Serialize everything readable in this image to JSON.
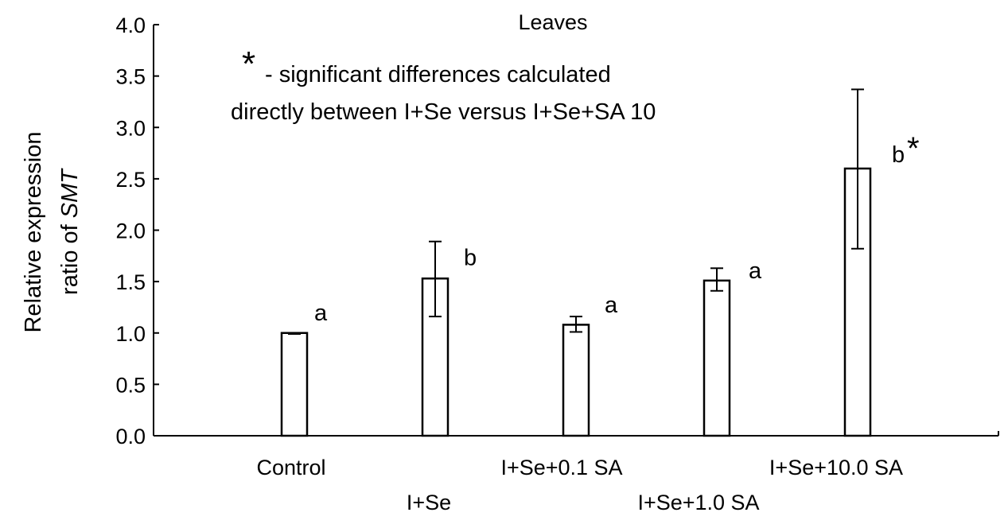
{
  "chart_data": {
    "type": "bar",
    "title": "Leaves",
    "ylabel": {
      "line1": "Relative expression",
      "line2_prefix": "ratio of ",
      "line2_gene": "SMT"
    },
    "xlabel": "",
    "ylim": [
      0,
      4.0
    ],
    "yticks": [
      "0.0",
      "0.5",
      "1.0",
      "1.5",
      "2.0",
      "2.5",
      "3.0",
      "3.5",
      "4.0"
    ],
    "grid": false,
    "legend": "none",
    "categories": [
      "Control",
      "I+Se",
      "I+Se+0.1 SA",
      "I+Se+1.0 SA",
      "I+Se+10.0 SA"
    ],
    "values": [
      1.0,
      1.53,
      1.08,
      1.51,
      2.6
    ],
    "error_low": [
      0.99,
      1.16,
      1.01,
      1.41,
      1.82
    ],
    "error_high": [
      1.0,
      1.89,
      1.16,
      1.63,
      3.37
    ],
    "significance_letters": [
      "a",
      "b",
      "a",
      "a",
      "b"
    ],
    "significance_star": [
      "",
      "",
      "",
      "",
      "*"
    ],
    "annotation": {
      "star": "*",
      "line1": "- significant differences calculated",
      "line2": "directly between I+Se versus I+Se+SA 10"
    },
    "bar_fill": "#ffffff",
    "bar_stroke": "#000000"
  }
}
